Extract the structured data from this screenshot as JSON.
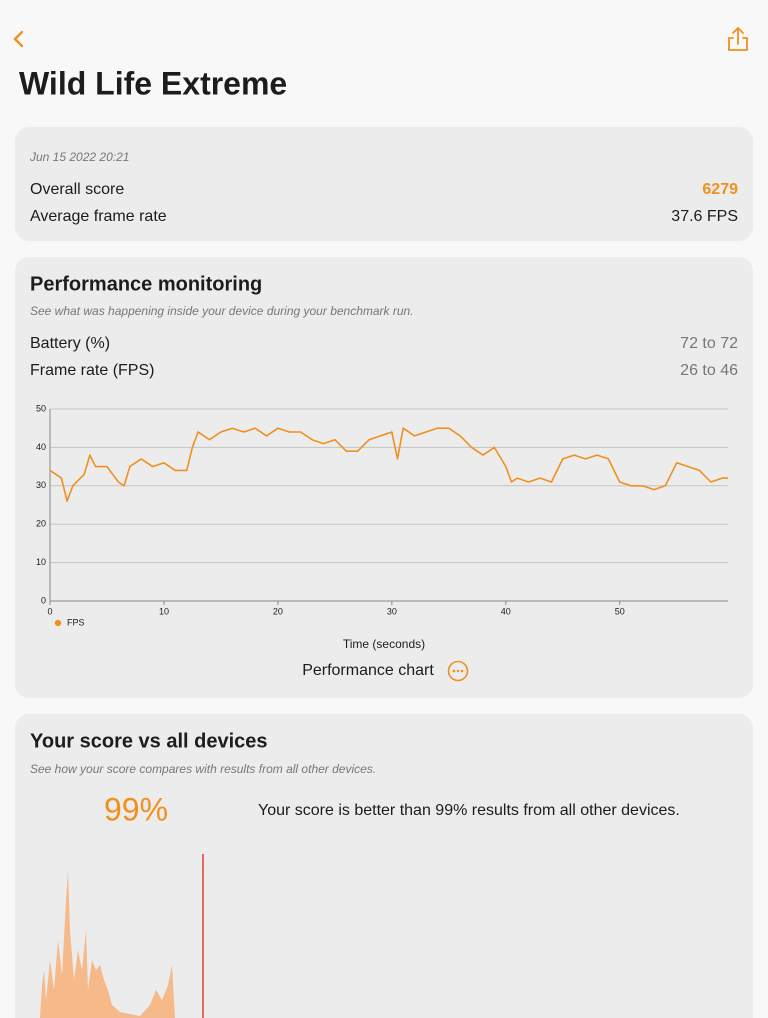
{
  "header": {
    "title": "Wild Life Extreme"
  },
  "summary": {
    "date": "Jun 15 2022 20:21",
    "rows": [
      {
        "label": "Overall score",
        "value": "6279"
      },
      {
        "label": "Average frame rate",
        "value": "37.6 FPS"
      }
    ]
  },
  "performance": {
    "title": "Performance monitoring",
    "subtitle": "See what was happening inside your device during your benchmark run.",
    "rows": [
      {
        "label": "Battery (%)",
        "value": "72 to 72"
      },
      {
        "label": "Frame rate (FPS)",
        "value": "26 to 46"
      }
    ],
    "chart_caption": "Performance chart"
  },
  "chart_data": {
    "type": "line",
    "xlabel": "Time (seconds)",
    "x": [
      0,
      1,
      1.5,
      2,
      3,
      3.5,
      4,
      5,
      6,
      6.5,
      7,
      8,
      9,
      10,
      11,
      12,
      12.5,
      13,
      14,
      15,
      16,
      17,
      18,
      19,
      20,
      21,
      22,
      23,
      24,
      25,
      26,
      27,
      28,
      29,
      30,
      30.5,
      31,
      32,
      33,
      34,
      35,
      36,
      37,
      38,
      39,
      40,
      40.5,
      41,
      42,
      43,
      44,
      45,
      46,
      47,
      48,
      49,
      50,
      51,
      52,
      53,
      54,
      55,
      56,
      57,
      58,
      59,
      59.5
    ],
    "series": [
      {
        "name": "FPS",
        "color": "#f0901e",
        "values": [
          34,
          32,
          26,
          30,
          33,
          38,
          35,
          35,
          31,
          30,
          35,
          37,
          35,
          36,
          34,
          34,
          40,
          44,
          42,
          44,
          45,
          44,
          45,
          43,
          45,
          44,
          44,
          42,
          41,
          42,
          39,
          39,
          42,
          43,
          44,
          37,
          45,
          43,
          44,
          45,
          45,
          43,
          40,
          38,
          40,
          35,
          31,
          32,
          31,
          32,
          31,
          37,
          38,
          37,
          38,
          37,
          31,
          30,
          30,
          29,
          30,
          36,
          35,
          34,
          31,
          32,
          32
        ]
      }
    ],
    "xlim": [
      0,
      59.5
    ],
    "ylim": [
      0,
      50
    ],
    "xticks": [
      0,
      10,
      20,
      30,
      40,
      50
    ],
    "yticks": [
      0,
      10,
      20,
      30,
      40,
      50
    ],
    "grid": true,
    "legend": "bottom-left"
  },
  "comparison": {
    "title": "Your score vs all devices",
    "subtitle": "See how your score compares with results from all other devices.",
    "percentile": "99%",
    "text": "Your score is better than 99% results from all other devices."
  }
}
